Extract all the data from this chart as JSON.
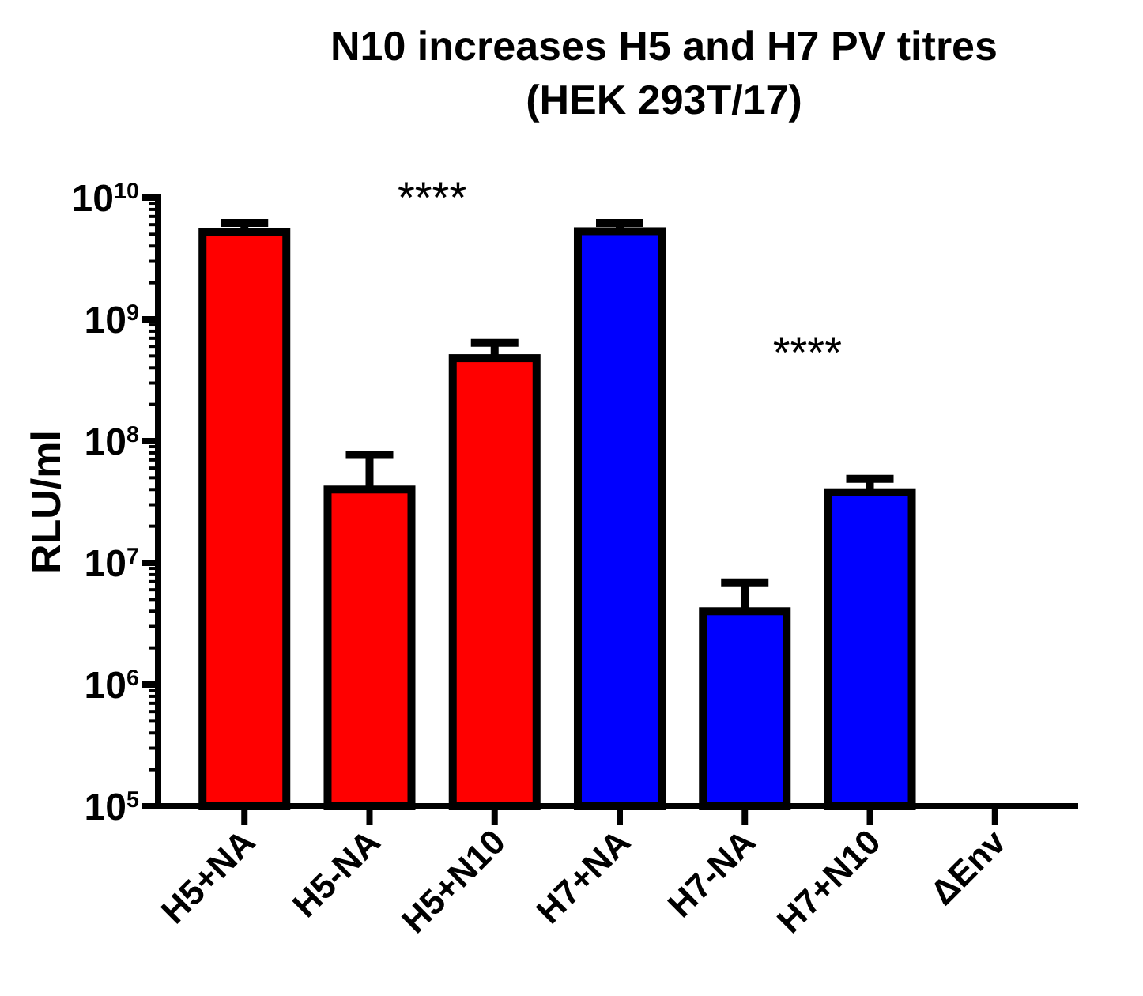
{
  "chart_data": {
    "type": "bar",
    "title": "N10 increases  H5 and  H7 PV titres",
    "subtitle": "(HEK 293T/17)",
    "ylabel": "RLU/ml",
    "categories": [
      "H5+NA",
      "H5-NA",
      "H5+N10",
      "H7+NA",
      "H7-NA",
      "H7+N10",
      "ΔEnv"
    ],
    "values": [
      5200000000.0,
      40000000.0,
      480000000.0,
      5300000000.0,
      4000000.0,
      38000000.0,
      null
    ],
    "colors": [
      "#ff0000",
      "#ff0000",
      "#ff0000",
      "#0000ff",
      "#0000ff",
      "#0000ff",
      null
    ],
    "errors": [
      [
        5200000000.0,
        6200000000.0
      ],
      [
        40000000.0,
        77000000.0
      ],
      [
        480000000.0,
        640000000.0
      ],
      [
        5300000000.0,
        6200000000.0
      ],
      [
        4000000.0,
        6900000.0
      ],
      [
        38000000.0,
        49000000.0
      ],
      null
    ],
    "log": true,
    "ylim": [
      100000.0,
      10000000000.0
    ],
    "yticks": [
      {
        "value": 100000.0,
        "label": "10$^{5}$"
      },
      {
        "value": 1000000.0,
        "label": "10$^{6}$"
      },
      {
        "value": 10000000.0,
        "label": "10$^{7}$"
      },
      {
        "value": 100000000.0,
        "label": "10$^{8}$"
      },
      {
        "value": 1000000000.0,
        "label": "10$^{9}$"
      },
      {
        "value": 10000000000.0,
        "label": "10$^{10}$"
      }
    ],
    "annotations": [
      "****",
      "****"
    ],
    "grid": false
  }
}
